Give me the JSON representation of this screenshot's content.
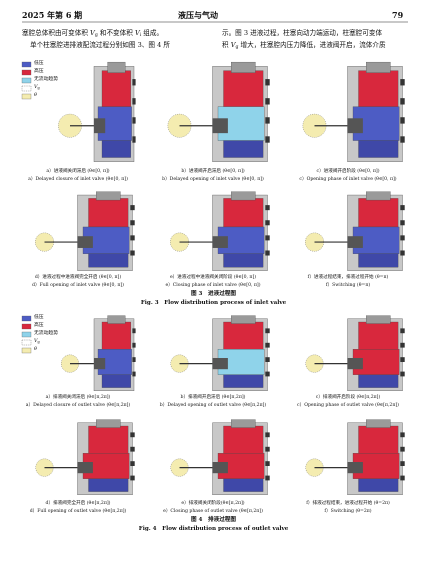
{
  "header": {
    "issue": "2025 年第 6 期",
    "journal": "液压与气动",
    "page": "79"
  },
  "body": {
    "left": [
      [
        "塞腔总体积由可变体积 ",
        "V",
        "g",
        " 和不变体积 ",
        "V",
        "i",
        " 组成。"
      ],
      [
        "单个柱塞腔进排液配流过程分别如图 3、图 4 所"
      ]
    ],
    "right": [
      [
        "示。图 3 进液过程，柱塞向动力端运动，柱塞腔可变体"
      ],
      [
        "积 ",
        "V",
        "g",
        " 增大，柱塞腔内压力降低，进液阀开启，流体介质"
      ]
    ]
  },
  "figures": [
    {
      "legend": {
        "low": "低压",
        "high": "高压",
        "none": "无流动趋势",
        "vol": [
          "V",
          "g"
        ],
        "theta": "θ"
      },
      "panels": [
        {
          "cn": "a）进液阀关闭滞后 (θ∈[0, π])",
          "en": "a）Delayed closure of inlet valve (θ∈[0, π])"
        },
        {
          "cn": "b）进液阀开启滞后 (θ∈[0, π])",
          "en": "b）Delayed opening of inlet valve (θ∈[0, π])"
        },
        {
          "cn": "c）进液阀开启阶段 (θ∈[0, π])",
          "en": "c）Opening phase of inlet valve (θ∈[0, π])"
        },
        {
          "cn": "d）进液过程中进液阀完全开启 (θ∈[0, π])",
          "en": "d）Full opening of inlet valve (θ∈[0, π])"
        },
        {
          "cn": "e）进液过程中进液阀关闭阶段 (θ∈[0, π])",
          "en": "e）Closing phase of inlet valve (θ∈[0, π])"
        },
        {
          "cn": "f）进液过程结束，排液过程开始 (θ=π)",
          "en": "f）Switching (θ=π)"
        }
      ],
      "title_cn": "图 3　进液过程图",
      "title_en": "Fig. 3　Flow distribution process of inlet valve"
    },
    {
      "legend": {
        "low": "低压",
        "high": "高压",
        "none": "无流动趋势",
        "vol": [
          "V",
          "g"
        ],
        "theta": "θ"
      },
      "panels": [
        {
          "cn": "a）排液阀关闭滞后 (θ∈[π,2π])",
          "en": "a）Delayed closure of outlet valve (θ∈[π,2π])"
        },
        {
          "cn": "b）排液阀开启滞后 (θ∈[π,2π])",
          "en": "b）Delayed opening of outlet valve (θ∈[π,2π])"
        },
        {
          "cn": "c）排液阀开启阶段 (θ∈[π,2π])",
          "en": "c）Opening phase of outlet valve (θ∈[π,2π])"
        },
        {
          "cn": "d）排液阀完全开启 (θ∈[π,2π])",
          "en": "d）Full opening of outlet valve (θ∈[π,2π])"
        },
        {
          "cn": "e）排液阀关闭阶段(θ∈[π,2π])",
          "en": "e）Closing phase of outlet valve (θ∈[π,2π])"
        },
        {
          "cn": "f）排液过程结束，进液过程开始 (θ=2π)",
          "en": "f）Switching (θ=2π)"
        }
      ],
      "title_cn": "图 4　排液过程图",
      "title_en": "Fig. 4　Flow distribution process of outlet valve"
    }
  ]
}
